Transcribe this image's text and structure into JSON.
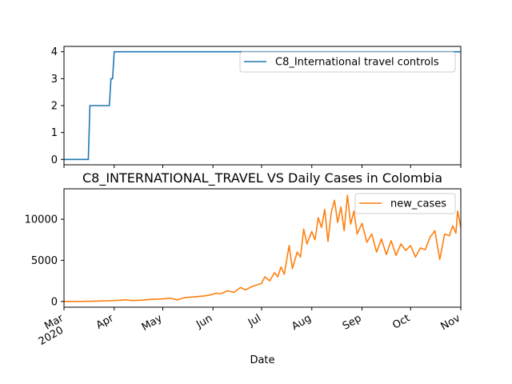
{
  "chart_data": [
    {
      "type": "line",
      "title": "",
      "xlabel": "",
      "ylabel": "",
      "ylim": [
        -0.2,
        4.2
      ],
      "yticks": [
        0,
        1,
        2,
        3,
        4
      ],
      "grid": false,
      "legend_position": "top-right",
      "series": [
        {
          "name": "C8_International travel controls",
          "color": "#1f77b4",
          "step": true,
          "points": [
            [
              "2020-03-01",
              0
            ],
            [
              "2020-03-16",
              0
            ],
            [
              "2020-03-17",
              2
            ],
            [
              "2020-03-29",
              2
            ],
            [
              "2020-03-30",
              3
            ],
            [
              "2020-03-31",
              3
            ],
            [
              "2020-04-01",
              4
            ],
            [
              "2020-11-01",
              4
            ]
          ]
        }
      ]
    },
    {
      "type": "line",
      "title": "C8_INTERNATIONAL_TRAVEL VS Daily Cases in Colombia",
      "xlabel": "Date",
      "ylabel": "",
      "ylim": [
        -700,
        13700
      ],
      "yticks": [
        0,
        5000,
        10000
      ],
      "grid": false,
      "legend_position": "top-right",
      "xlim": [
        "2020-03-01",
        "2020-11-01"
      ],
      "xticks": [
        {
          "date": "2020-03-01",
          "label": "Mar",
          "label2": "2020"
        },
        {
          "date": "2020-04-01",
          "label": "Apr"
        },
        {
          "date": "2020-05-01",
          "label": "May"
        },
        {
          "date": "2020-06-01",
          "label": "Jun"
        },
        {
          "date": "2020-07-01",
          "label": "Jul"
        },
        {
          "date": "2020-08-01",
          "label": "Aug"
        },
        {
          "date": "2020-09-01",
          "label": "Sep"
        },
        {
          "date": "2020-10-01",
          "label": "Oct"
        },
        {
          "date": "2020-11-01",
          "label": "Nov"
        }
      ],
      "series": [
        {
          "name": "new_cases",
          "color": "#ff7f0e",
          "points": [
            [
              "2020-03-01",
              0
            ],
            [
              "2020-03-10",
              0
            ],
            [
              "2020-03-20",
              40
            ],
            [
              "2020-03-28",
              80
            ],
            [
              "2020-04-03",
              120
            ],
            [
              "2020-04-08",
              200
            ],
            [
              "2020-04-12",
              110
            ],
            [
              "2020-04-18",
              160
            ],
            [
              "2020-04-24",
              250
            ],
            [
              "2020-04-30",
              300
            ],
            [
              "2020-05-06",
              380
            ],
            [
              "2020-05-10",
              200
            ],
            [
              "2020-05-14",
              450
            ],
            [
              "2020-05-20",
              550
            ],
            [
              "2020-05-26",
              650
            ],
            [
              "2020-05-30",
              780
            ],
            [
              "2020-06-03",
              1000
            ],
            [
              "2020-06-06",
              950
            ],
            [
              "2020-06-10",
              1300
            ],
            [
              "2020-06-14",
              1100
            ],
            [
              "2020-06-18",
              1700
            ],
            [
              "2020-06-21",
              1400
            ],
            [
              "2020-06-25",
              1800
            ],
            [
              "2020-06-28",
              2000
            ],
            [
              "2020-07-01",
              2200
            ],
            [
              "2020-07-03",
              3000
            ],
            [
              "2020-07-06",
              2500
            ],
            [
              "2020-07-09",
              3500
            ],
            [
              "2020-07-11",
              3000
            ],
            [
              "2020-07-13",
              4200
            ],
            [
              "2020-07-15",
              3300
            ],
            [
              "2020-07-18",
              6800
            ],
            [
              "2020-07-20",
              4000
            ],
            [
              "2020-07-23",
              6000
            ],
            [
              "2020-07-25",
              5400
            ],
            [
              "2020-07-27",
              8800
            ],
            [
              "2020-07-29",
              7000
            ],
            [
              "2020-08-01",
              8500
            ],
            [
              "2020-08-03",
              7500
            ],
            [
              "2020-08-05",
              10200
            ],
            [
              "2020-08-07",
              9000
            ],
            [
              "2020-08-09",
              11200
            ],
            [
              "2020-08-11",
              7300
            ],
            [
              "2020-08-13",
              10800
            ],
            [
              "2020-08-15",
              12300
            ],
            [
              "2020-08-17",
              9600
            ],
            [
              "2020-08-19",
              11500
            ],
            [
              "2020-08-21",
              8600
            ],
            [
              "2020-08-23",
              12900
            ],
            [
              "2020-08-25",
              9400
            ],
            [
              "2020-08-27",
              11000
            ],
            [
              "2020-08-29",
              8200
            ],
            [
              "2020-09-01",
              9500
            ],
            [
              "2020-09-04",
              7200
            ],
            [
              "2020-09-07",
              8200
            ],
            [
              "2020-09-10",
              6000
            ],
            [
              "2020-09-13",
              7600
            ],
            [
              "2020-09-16",
              5700
            ],
            [
              "2020-09-19",
              7400
            ],
            [
              "2020-09-22",
              5600
            ],
            [
              "2020-09-25",
              7000
            ],
            [
              "2020-09-28",
              6200
            ],
            [
              "2020-10-01",
              6800
            ],
            [
              "2020-10-04",
              5400
            ],
            [
              "2020-10-07",
              6500
            ],
            [
              "2020-10-10",
              6300
            ],
            [
              "2020-10-13",
              7800
            ],
            [
              "2020-10-16",
              8600
            ],
            [
              "2020-10-19",
              5100
            ],
            [
              "2020-10-22",
              8200
            ],
            [
              "2020-10-25",
              8000
            ],
            [
              "2020-10-27",
              9200
            ],
            [
              "2020-10-29",
              8300
            ],
            [
              "2020-10-30",
              11000
            ],
            [
              "2020-10-31",
              10000
            ],
            [
              "2020-11-01",
              9000
            ]
          ]
        }
      ]
    }
  ]
}
